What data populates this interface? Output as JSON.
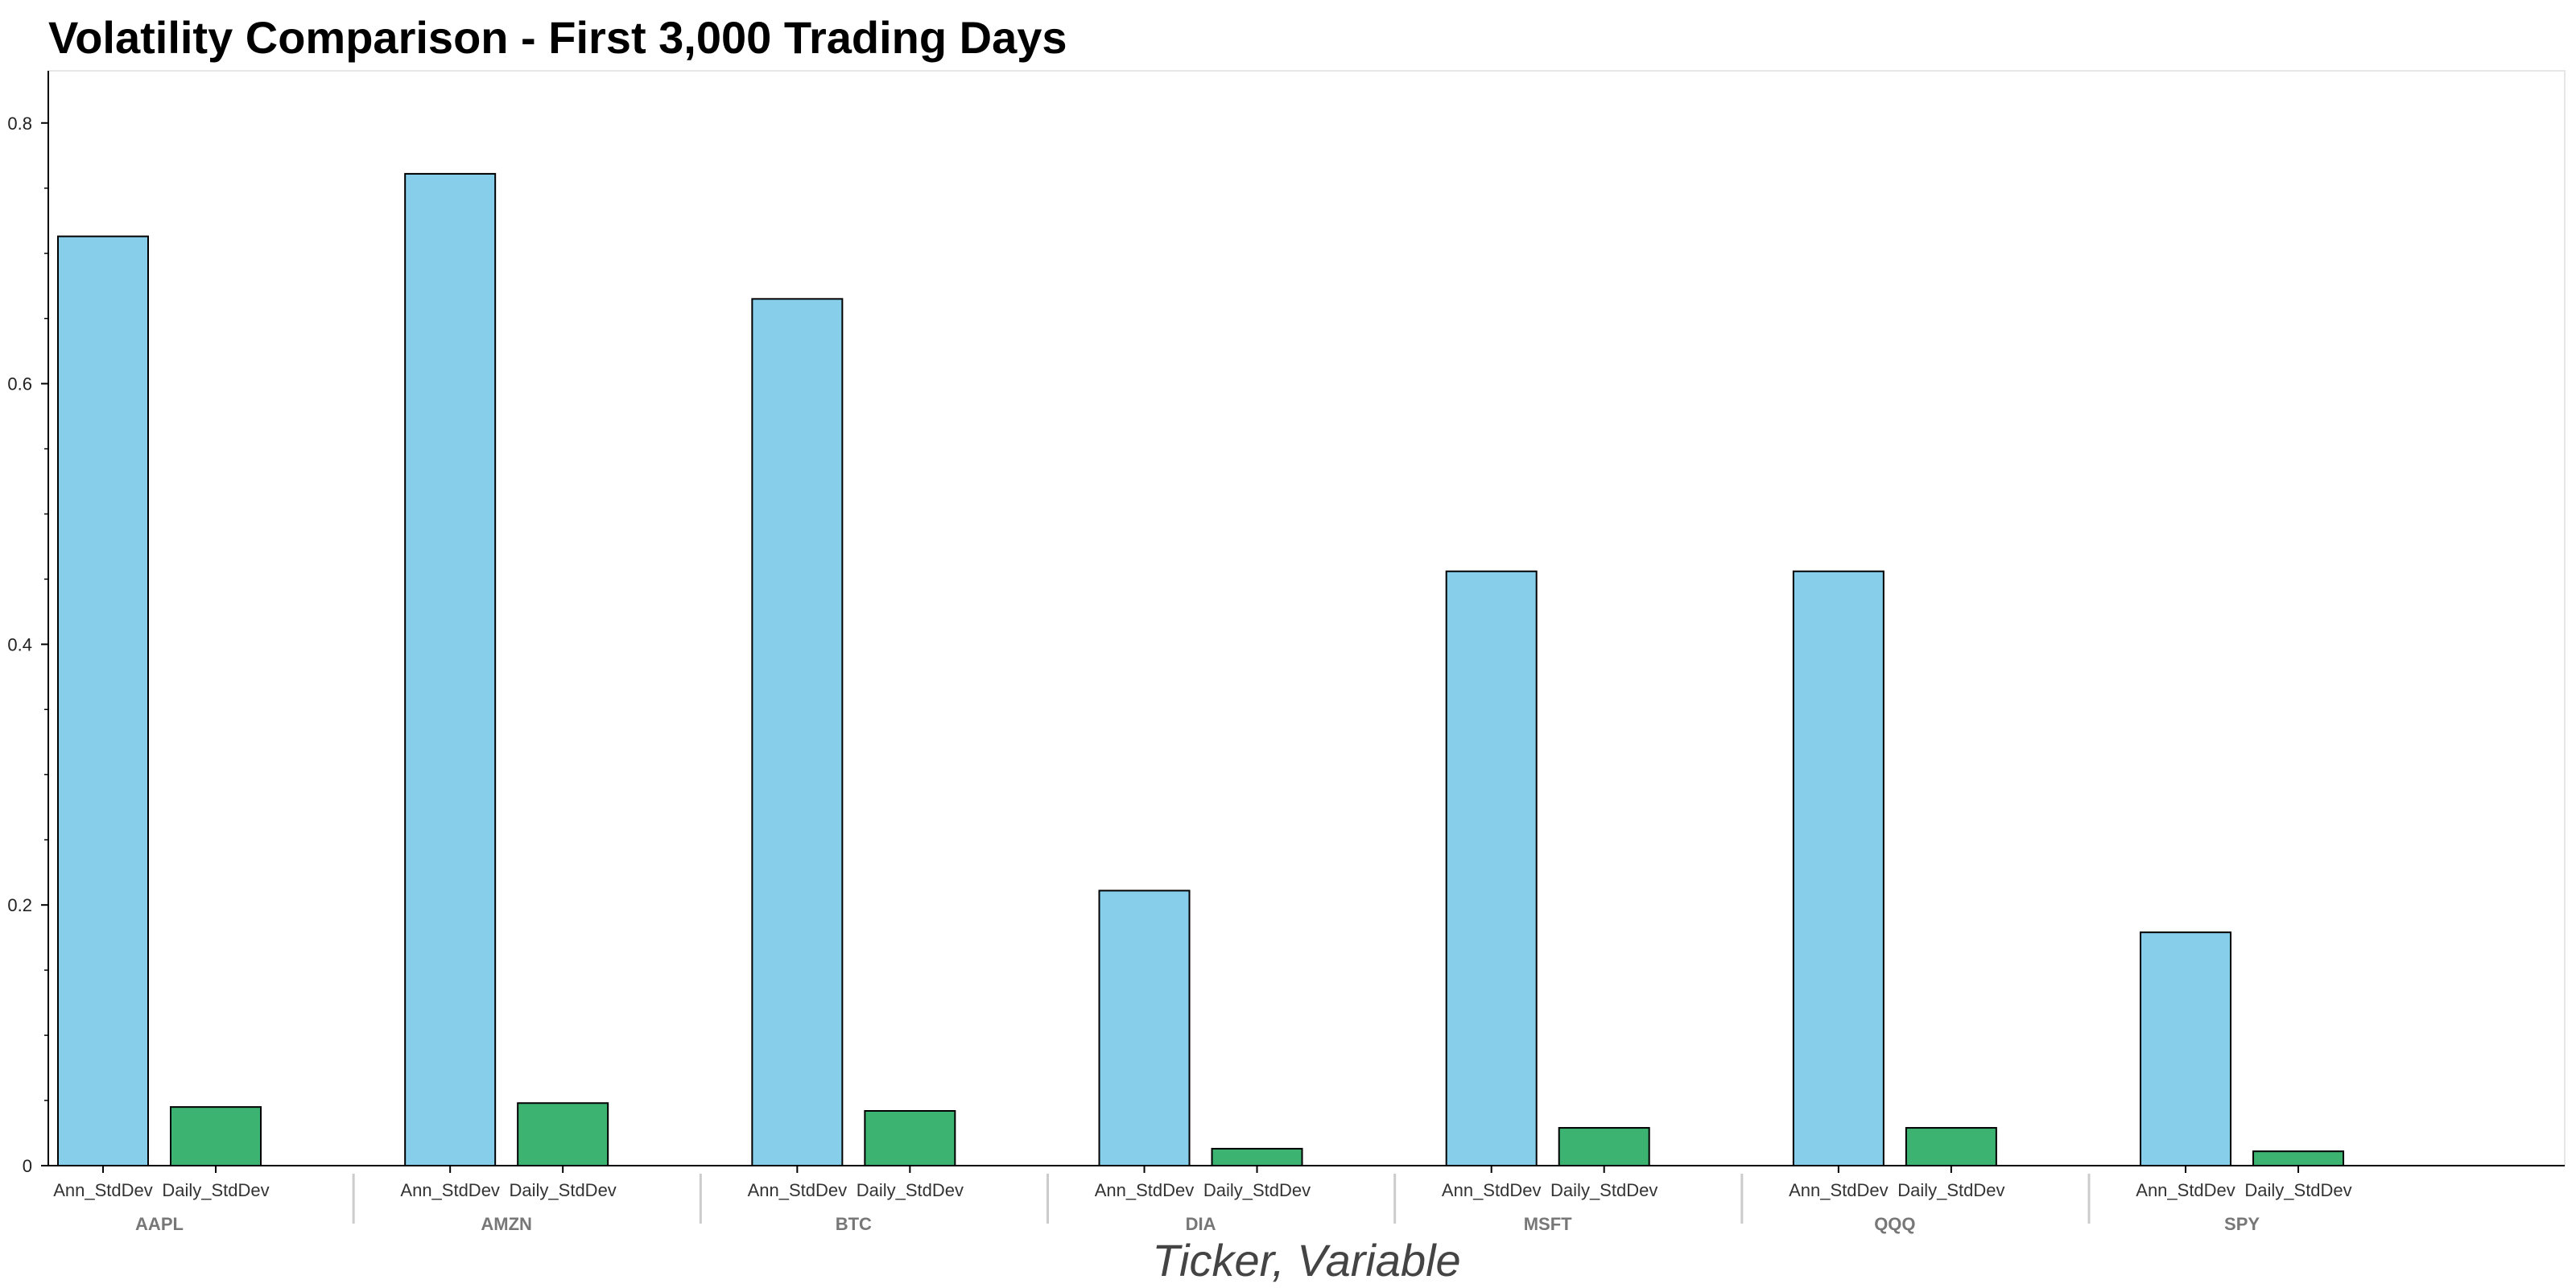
{
  "chart_data": {
    "type": "bar",
    "title": "Volatility Comparison - First 3,000 Trading Days",
    "xlabel": "Ticker, Variable",
    "ylabel": "",
    "ylim": [
      0,
      0.84
    ],
    "yticks": [
      0,
      0.2,
      0.4,
      0.6,
      0.8
    ],
    "ytick_labels": [
      "0",
      "0.2",
      "0.4",
      "0.6",
      "0.8"
    ],
    "grid": false,
    "legend": "none",
    "groups": [
      "AAPL",
      "AMZN",
      "BTC",
      "DIA",
      "MSFT",
      "QQQ",
      "SPY"
    ],
    "series": [
      {
        "name": "Ann_StdDev",
        "color": "#87ceeb",
        "values": [
          0.713,
          0.761,
          0.665,
          0.211,
          0.456,
          0.456,
          0.179
        ]
      },
      {
        "name": "Daily_StdDev",
        "color": "#3cb371",
        "values": [
          0.045,
          0.048,
          0.042,
          0.013,
          0.029,
          0.029,
          0.011
        ]
      }
    ]
  }
}
